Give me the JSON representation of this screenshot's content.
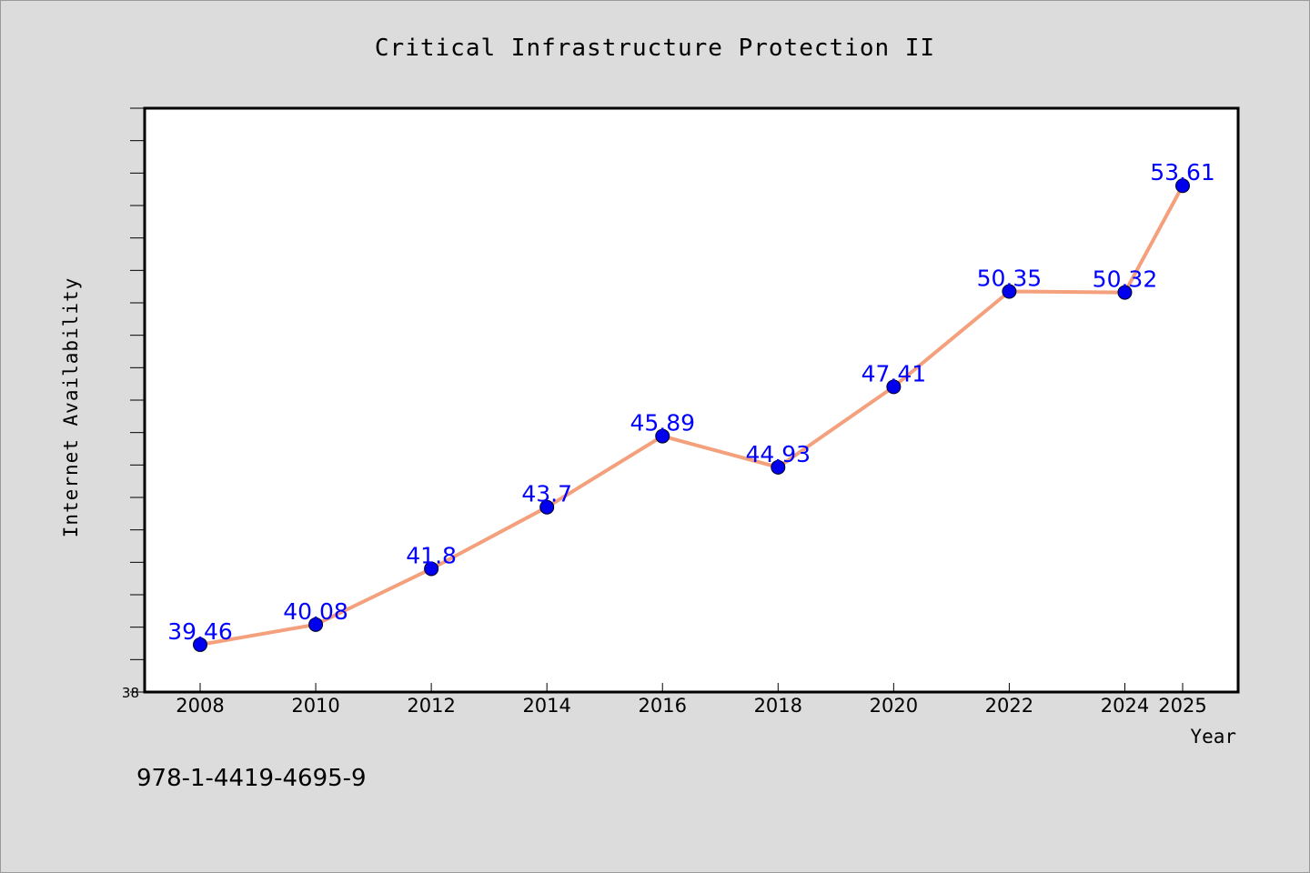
{
  "chart_data": {
    "type": "line",
    "title": "Critical Infrastructure Protection II",
    "xlabel": "Year",
    "ylabel": "Internet Availability",
    "x": [
      "2008",
      "2010",
      "2012",
      "2014",
      "2016",
      "2018",
      "2020",
      "2022",
      "2024",
      "2025"
    ],
    "values": [
      39.46,
      40.08,
      41.8,
      43.7,
      45.89,
      44.93,
      47.41,
      50.35,
      50.32,
      53.61
    ],
    "data_labels": [
      "39.46",
      "40.08",
      "41.8",
      "43.7",
      "45.89",
      "44.93",
      "47.41",
      "50.35",
      "50.32",
      "53.61"
    ],
    "y_tick_labels": [
      "38"
    ],
    "ylim": [
      38,
      56
    ],
    "grid": false,
    "legend": "none",
    "colors": {
      "line": "#f4a07c",
      "marker": "#0000ee",
      "data_label": "#0000ff",
      "background": "#dcdcdc",
      "plot_background": "#ffffff"
    }
  },
  "footer": {
    "isbn": "978-1-4419-4695-9"
  }
}
